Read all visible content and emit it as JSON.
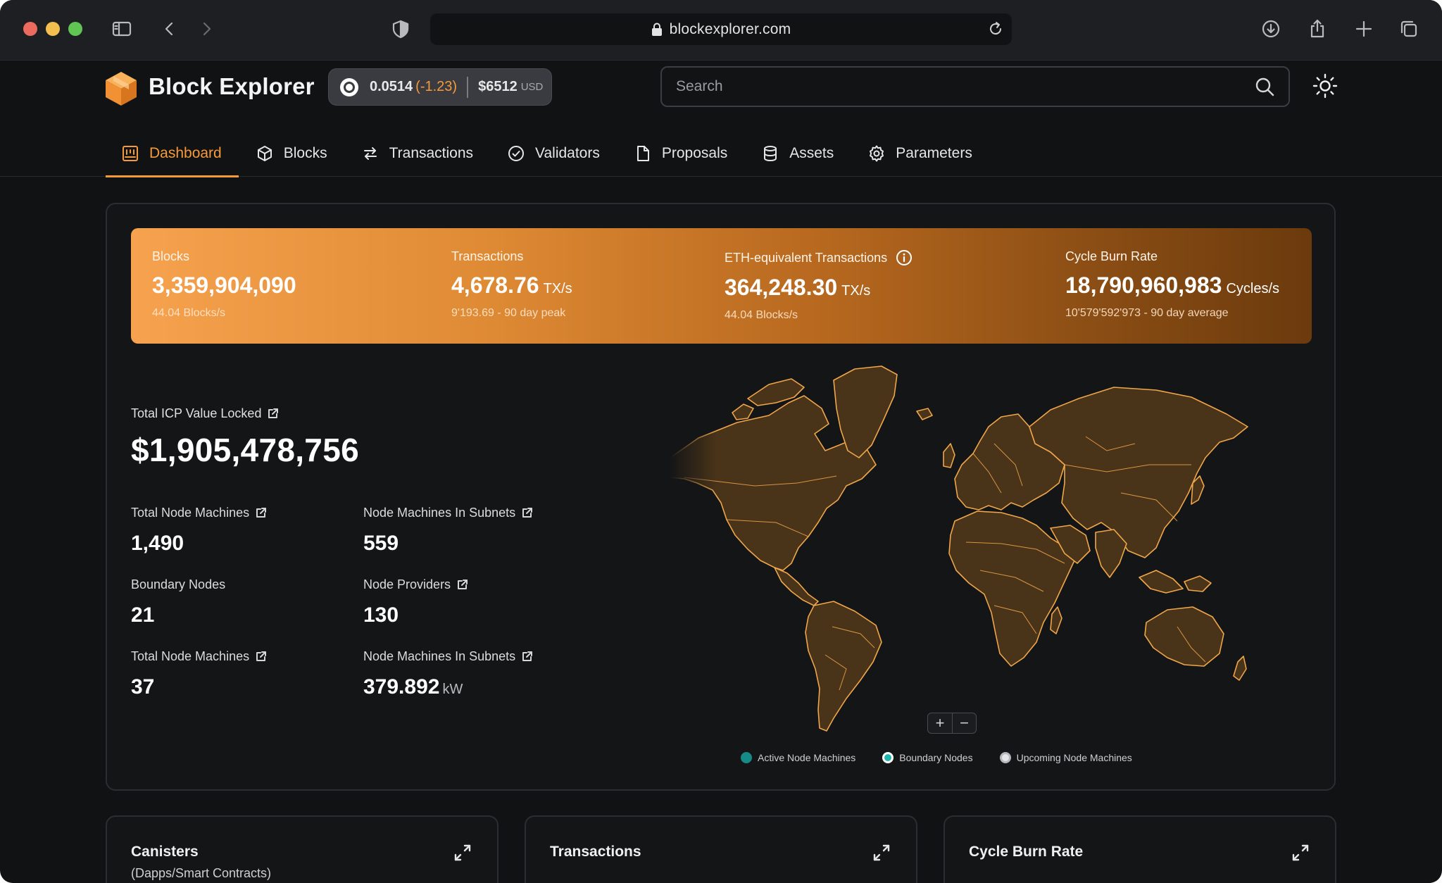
{
  "browser": {
    "url": "blockexplorer.com"
  },
  "header": {
    "brand": "Block Explorer",
    "price": {
      "icp": "0.0514",
      "delta": "(-1.23)",
      "usd_value": "$6512",
      "usd_unit": "USD"
    },
    "search_placeholder": "Search"
  },
  "nav": {
    "items": [
      {
        "label": "Dashboard",
        "icon": "dashboard-icon"
      },
      {
        "label": "Blocks",
        "icon": "cube-icon"
      },
      {
        "label": "Transactions",
        "icon": "arrows-swap-icon"
      },
      {
        "label": "Validators",
        "icon": "check-circle-icon"
      },
      {
        "label": "Proposals",
        "icon": "document-icon"
      },
      {
        "label": "Assets",
        "icon": "database-icon"
      },
      {
        "label": "Parameters",
        "icon": "gear-icon"
      }
    ],
    "active": "Dashboard"
  },
  "banner": {
    "blocks": {
      "label": "Blocks",
      "value": "3,359,904,090",
      "unit": "",
      "sub": "44.04 Blocks/s"
    },
    "transactions": {
      "label": "Transactions",
      "value": "4,678.76",
      "unit": "TX/s",
      "sub": "9'193.69 - 90 day peak"
    },
    "eth_tx": {
      "label": "ETH-equivalent Transactions",
      "value": "364,248.30",
      "unit": "TX/s",
      "sub": "44.04 Blocks/s"
    },
    "cycle_burn": {
      "label": "Cycle Burn Rate",
      "value": "18,790,960,983",
      "unit": "Cycles/s",
      "sub": "10'579'592'973 - 90 day average"
    }
  },
  "tvl": {
    "label": "Total ICP Value Locked",
    "value": "$1,905,478,756"
  },
  "metrics": [
    {
      "label": "Total Node  Machines",
      "value": "1,490",
      "unit": "",
      "link": true
    },
    {
      "label": "Node Machines In Subnets",
      "value": "559",
      "unit": "",
      "link": true
    },
    {
      "label": "Boundary Nodes",
      "value": "21",
      "unit": "",
      "link": false
    },
    {
      "label": "Node Providers",
      "value": "130",
      "unit": "",
      "link": true
    },
    {
      "label": "Total Node  Machines",
      "value": "37",
      "unit": "",
      "link": true
    },
    {
      "label": "Node Machines In Subnets",
      "value": "379.892",
      "unit": "kW",
      "link": true
    }
  ],
  "map": {
    "zoom_in": "+",
    "zoom_out": "−",
    "legend": [
      {
        "label": "Active Node Machines",
        "color": "#168a86"
      },
      {
        "label": "Boundary Nodes",
        "color": "#1fb5b0"
      },
      {
        "label": "Upcoming Node Machines",
        "color": "#e6e6e8"
      }
    ],
    "land_color": "#4a3419",
    "border_color": "#f0a64a"
  },
  "cards": [
    {
      "title": "Canisters",
      "subtitle": "(Dapps/Smart Contracts)"
    },
    {
      "title": "Transactions",
      "subtitle": ""
    },
    {
      "title": "Cycle Burn Rate",
      "subtitle": ""
    }
  ],
  "colors": {
    "accent": "#f59a3a",
    "background": "#111214"
  }
}
